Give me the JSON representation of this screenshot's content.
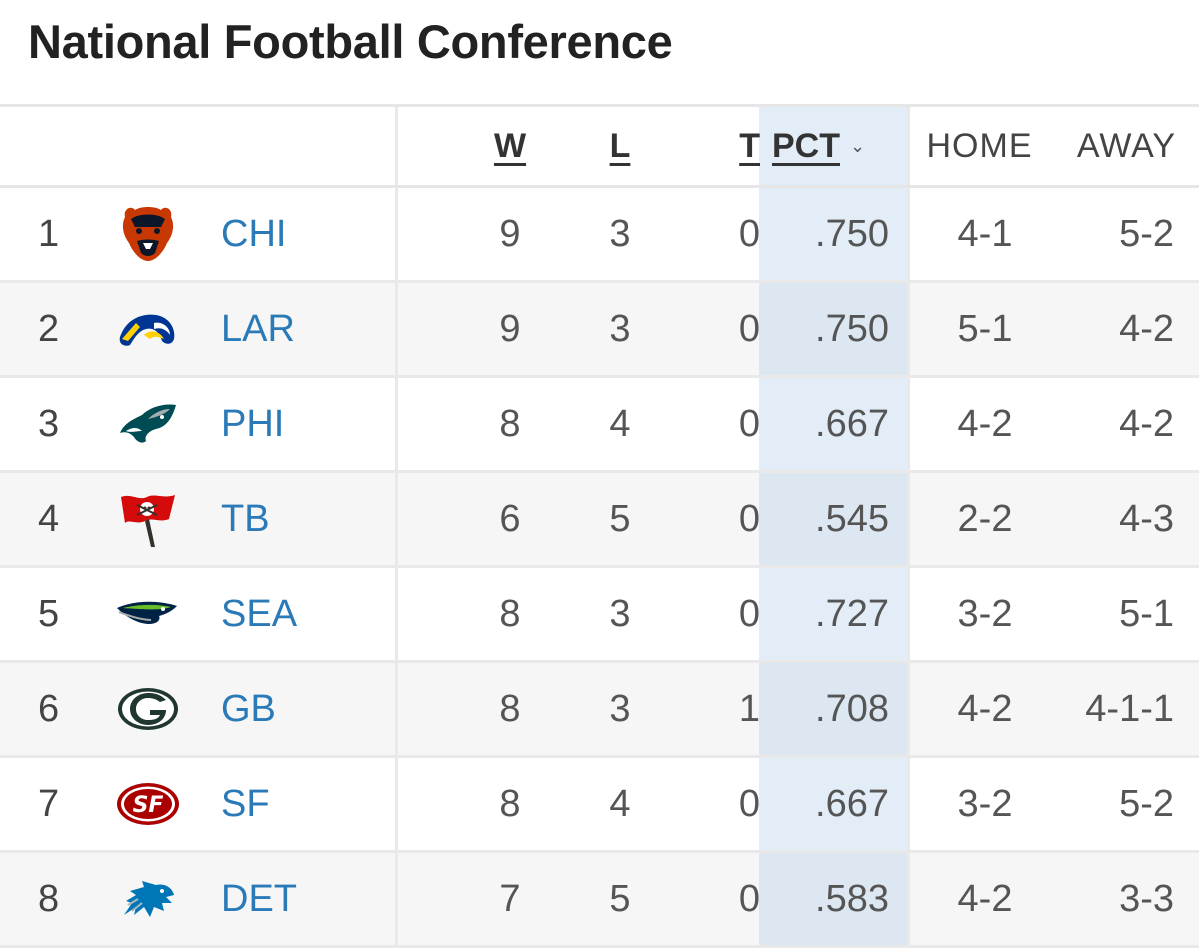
{
  "title": "National Football Conference",
  "columns": {
    "w": "W",
    "l": "L",
    "t": "T",
    "pct": "PCT",
    "home": "HOME",
    "away": "AWAY"
  },
  "sort_indicator": "⌄",
  "colors": {
    "team_link": "#2a7ab8",
    "sorted_column": "#e3edf7"
  },
  "teams": [
    {
      "rank": "1",
      "team": "CHI",
      "logo": "bears-logo-icon",
      "w": "9",
      "l": "3",
      "t": "0",
      "pct": ".750",
      "home": "4-1",
      "away": "5-2"
    },
    {
      "rank": "2",
      "team": "LAR",
      "logo": "rams-logo-icon",
      "w": "9",
      "l": "3",
      "t": "0",
      "pct": ".750",
      "home": "5-1",
      "away": "4-2"
    },
    {
      "rank": "3",
      "team": "PHI",
      "logo": "eagles-logo-icon",
      "w": "8",
      "l": "4",
      "t": "0",
      "pct": ".667",
      "home": "4-2",
      "away": "4-2"
    },
    {
      "rank": "4",
      "team": "TB",
      "logo": "buccaneers-logo-icon",
      "w": "6",
      "l": "5",
      "t": "0",
      "pct": ".545",
      "home": "2-2",
      "away": "4-3"
    },
    {
      "rank": "5",
      "team": "SEA",
      "logo": "seahawks-logo-icon",
      "w": "8",
      "l": "3",
      "t": "0",
      "pct": ".727",
      "home": "3-2",
      "away": "5-1"
    },
    {
      "rank": "6",
      "team": "GB",
      "logo": "packers-logo-icon",
      "w": "8",
      "l": "3",
      "t": "1",
      "pct": ".708",
      "home": "4-2",
      "away": "4-1-1"
    },
    {
      "rank": "7",
      "team": "SF",
      "logo": "49ers-logo-icon",
      "w": "8",
      "l": "4",
      "t": "0",
      "pct": ".667",
      "home": "3-2",
      "away": "5-2"
    },
    {
      "rank": "8",
      "team": "DET",
      "logo": "lions-logo-icon",
      "w": "7",
      "l": "5",
      "t": "0",
      "pct": ".583",
      "home": "4-2",
      "away": "3-3"
    }
  ]
}
